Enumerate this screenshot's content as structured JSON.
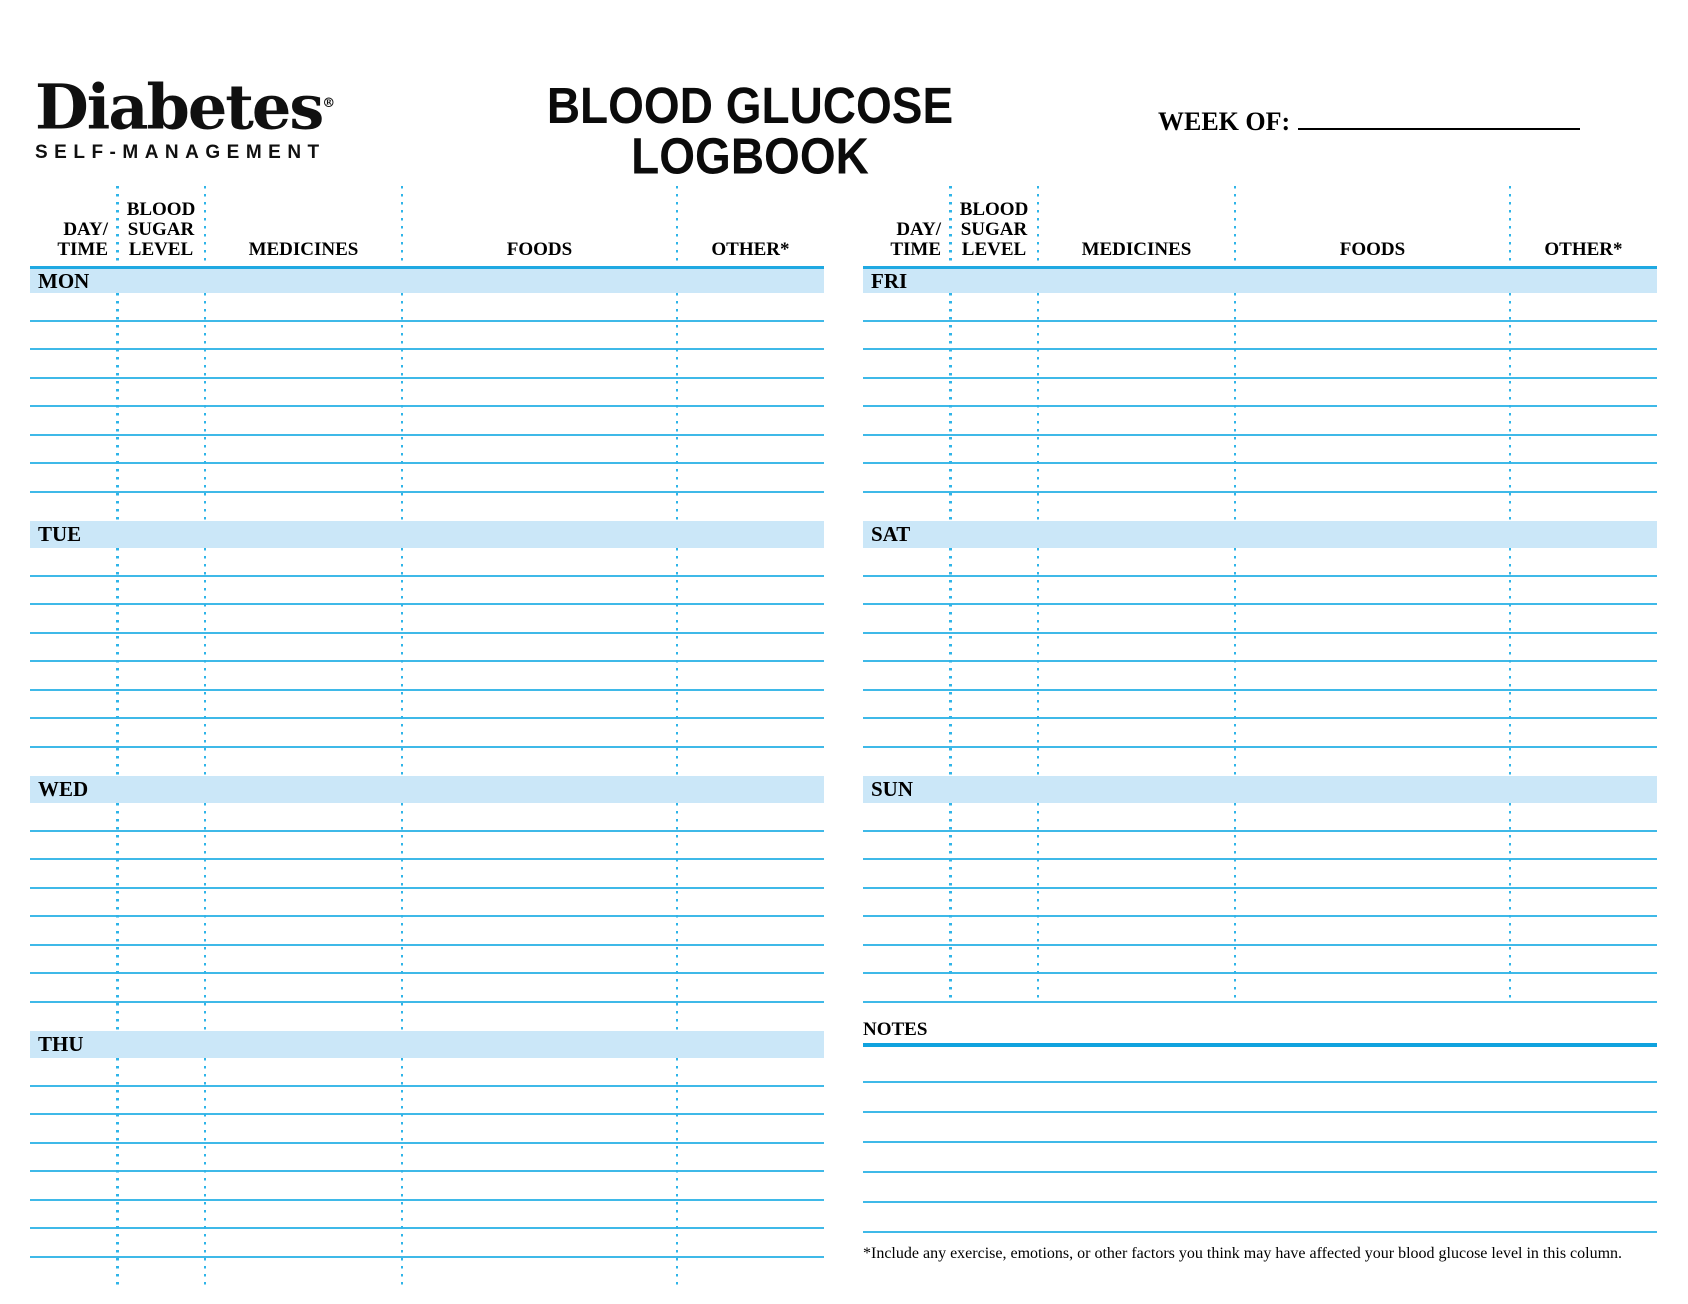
{
  "logo": {
    "brand": "Diabetes",
    "registered": "®",
    "subtitle": "SELF-MANAGEMENT"
  },
  "title": {
    "line1": "BLOOD GLUCOSE",
    "line2": "LOGBOOK"
  },
  "week_of": {
    "label": "WEEK OF:",
    "value": ""
  },
  "columns": [
    {
      "id": "day-time",
      "lines": [
        "DAY/",
        "TIME"
      ],
      "width_pct": 10.96,
      "align": "right"
    },
    {
      "id": "blood-sugar-level",
      "lines": [
        "BLOOD",
        "SUGAR",
        "LEVEL"
      ],
      "width_pct": 11.08,
      "align": "center"
    },
    {
      "id": "medicines",
      "lines": [
        "MEDICINES"
      ],
      "width_pct": 24.81,
      "align": "center"
    },
    {
      "id": "foods",
      "lines": [
        "FOODS"
      ],
      "width_pct": 34.63,
      "align": "center"
    },
    {
      "id": "other",
      "lines": [
        "OTHER*"
      ],
      "width_pct": 18.52,
      "align": "center"
    }
  ],
  "tables": {
    "left": {
      "days": [
        {
          "label": "MON",
          "rows": 8,
          "last_row_open": true
        },
        {
          "label": "TUE",
          "rows": 8,
          "last_row_open": true
        },
        {
          "label": "WED",
          "rows": 8,
          "last_row_open": true
        },
        {
          "label": "THU",
          "rows": 8,
          "last_row_open": true
        }
      ]
    },
    "right": {
      "days": [
        {
          "label": "FRI",
          "rows": 8,
          "last_row_open": true
        },
        {
          "label": "SAT",
          "rows": 8,
          "last_row_open": true
        },
        {
          "label": "SUN",
          "rows": 7,
          "last_row_open": false
        }
      ]
    }
  },
  "notes": {
    "label": "NOTES",
    "line_count": 6
  },
  "footnote": "*Include any exercise, emotions, or other factors you think may have affected your blood glucose level in this column.",
  "colors": {
    "row_line": "#3fb9e8",
    "dotted_line": "#2fb4e8",
    "day_band_fill": "#cbe7f8",
    "header_rule": "#1fa9e2",
    "notes_rule": "#0fa2de",
    "text": "#000000"
  }
}
